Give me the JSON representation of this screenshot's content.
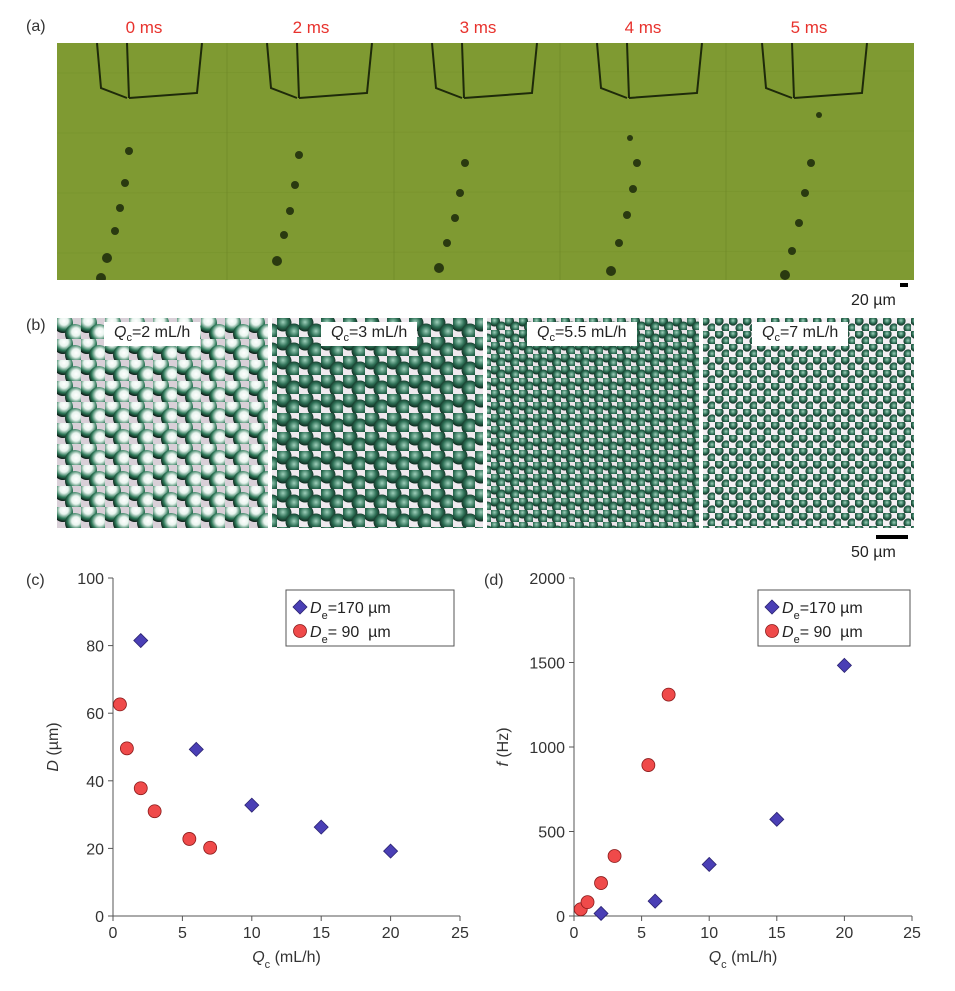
{
  "panels": {
    "a": {
      "label": "(a)",
      "times": [
        "0 ms",
        "2 ms",
        "3 ms",
        "4 ms",
        "5 ms"
      ],
      "scale": "20 µm",
      "colors": {
        "background": "#7f9a32",
        "time_text": "#e8322d"
      }
    },
    "b": {
      "label": "(b)",
      "frames": [
        {
          "sym": "Q",
          "sub": "c",
          "value": "=2 mL/h"
        },
        {
          "sym": "Q",
          "sub": "c",
          "value": "=3 mL/h"
        },
        {
          "sym": "Q",
          "sub": "c",
          "value": "=5.5 mL/h"
        },
        {
          "sym": "Q",
          "sub": "c",
          "value": "=7 mL/h"
        }
      ],
      "scale": "50 µm"
    },
    "c": {
      "label": "(c)"
    },
    "d": {
      "label": "(d)"
    }
  },
  "chart_data": [
    {
      "type": "scatter",
      "panel": "c",
      "xlabel_sym": "Q",
      "xlabel_sub": "c",
      "xlabel_unit": " (mL/h)",
      "ylabel_sym": "D",
      "ylabel_unit": " (µm)",
      "xlim": [
        0,
        25
      ],
      "ylim": [
        0,
        100
      ],
      "xticks": [
        0,
        5,
        10,
        15,
        20,
        25
      ],
      "yticks": [
        0,
        20,
        40,
        60,
        80,
        100
      ],
      "legend_position": "top-right",
      "series": [
        {
          "name": "De=170 µm",
          "legend_sym": "D",
          "legend_sub": "e",
          "legend_value": "=170 µm",
          "marker": "diamond",
          "color": "#4a3fb5",
          "x": [
            2,
            6,
            10,
            15,
            20
          ],
          "y": [
            81.5,
            49.3,
            32.8,
            26.3,
            19.2
          ]
        },
        {
          "name": "De=90 µm",
          "legend_sym": "D",
          "legend_sub": "e",
          "legend_value": "= 90  µm",
          "marker": "circle",
          "color": "#ef4a4a",
          "x": [
            0.5,
            1,
            2,
            3,
            5.5,
            7
          ],
          "y": [
            62.6,
            49.6,
            37.8,
            31.0,
            22.8,
            20.2
          ]
        }
      ]
    },
    {
      "type": "scatter",
      "panel": "d",
      "xlabel_sym": "Q",
      "xlabel_sub": "c",
      "xlabel_unit": " (mL/h)",
      "ylabel_sym": "f",
      "ylabel_unit": " (Hz)",
      "xlim": [
        0,
        25
      ],
      "ylim": [
        0,
        2000
      ],
      "xticks": [
        0,
        5,
        10,
        15,
        20,
        25
      ],
      "yticks": [
        0,
        500,
        1000,
        1500,
        2000
      ],
      "legend_position": "top-right",
      "series": [
        {
          "name": "De=170 µm",
          "legend_sym": "D",
          "legend_sub": "e",
          "legend_value": "=170 µm",
          "marker": "diamond",
          "color": "#4a3fb5",
          "x": [
            2,
            6,
            10,
            15,
            20
          ],
          "y": [
            15,
            88,
            305,
            572,
            1483
          ]
        },
        {
          "name": "De=90 µm",
          "legend_sym": "D",
          "legend_sub": "e",
          "legend_value": "= 90  µm",
          "marker": "circle",
          "color": "#ef4a4a",
          "x": [
            0.5,
            1,
            2,
            3,
            5.5,
            7
          ],
          "y": [
            40,
            82,
            195,
            355,
            893,
            1310
          ]
        }
      ]
    }
  ]
}
